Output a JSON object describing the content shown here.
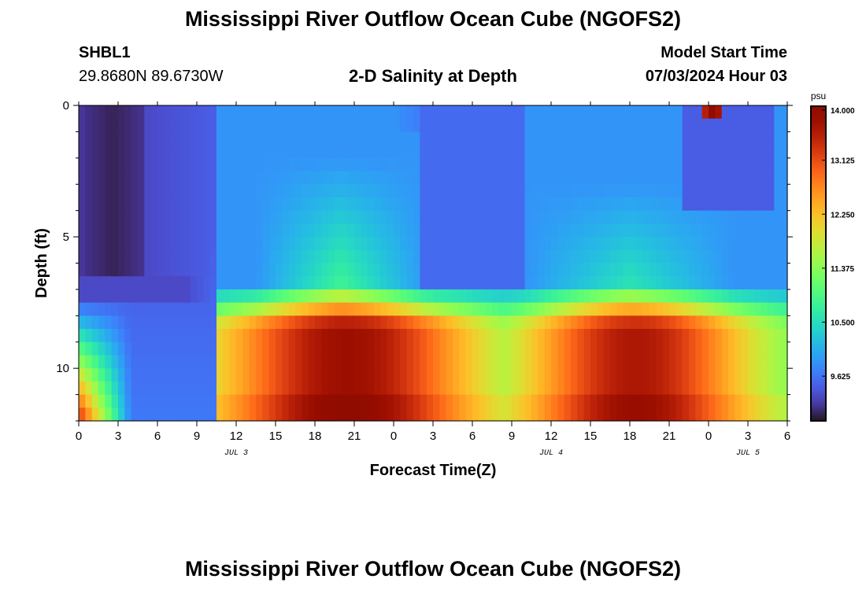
{
  "header": {
    "title": "Mississippi River Outflow Ocean Cube (NGOFS2)",
    "station_id": "SHBL1",
    "station_coords": "29.8680N  89.6730W",
    "plot_title": "2-D Salinity at Depth",
    "start_label": "Model Start Time",
    "start_value": "07/03/2024 Hour 03"
  },
  "footer": {
    "title": "Mississippi River Outflow Ocean Cube (NGOFS2)"
  },
  "chart_data": {
    "type": "heatmap",
    "title": "2-D Salinity at Depth",
    "xlabel": "Forecast Time(Z)",
    "ylabel": "Depth (ft)",
    "x_range_hours": [
      0,
      54
    ],
    "y_range_ft": [
      0,
      12
    ],
    "y_inverted": true,
    "x_ticks": [
      "0",
      "3",
      "6",
      "9",
      "12",
      "15",
      "18",
      "21",
      "0",
      "3",
      "6",
      "9",
      "12",
      "15",
      "18",
      "21",
      "0",
      "3",
      "6"
    ],
    "y_ticks": [
      "0",
      "5",
      "10"
    ],
    "date_labels": [
      {
        "label": "JUL 3",
        "hour": 12
      },
      {
        "label": "JUL 4",
        "hour": 36
      },
      {
        "label": "JUL 5",
        "hour": 51
      }
    ],
    "colorbar": {
      "unit": "psu",
      "min": 8.9,
      "max": 14.0,
      "tick_labels": [
        "14.000",
        "13.125",
        "12.250",
        "11.375",
        "10.500",
        "9.625"
      ],
      "tick_values": [
        14.0,
        13.125,
        12.25,
        11.375,
        10.5,
        9.625
      ],
      "colormap": "turbo"
    },
    "grid": false,
    "notes": "Salinity field: low (~9.0-9.4 psu) near surface early; high (~12.5-13.8 psu) at depth 8-12 ft around hours 12-24 and 36-50."
  }
}
